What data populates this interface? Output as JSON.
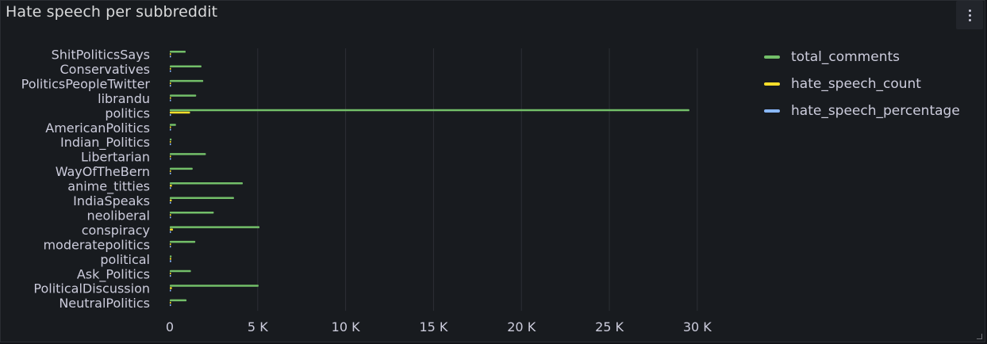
{
  "panel": {
    "title": "Hate speech per subbreddit",
    "menu_icon": "vertical-ellipsis-icon"
  },
  "colors": {
    "total_comments": "#73bf69",
    "hate_speech_count": "#fade2a",
    "hate_speech_percentage": "#8ab8ff",
    "grid": "#2c2f35",
    "text": "#ccccdc"
  },
  "chart_data": {
    "type": "bar",
    "orientation": "horizontal",
    "categories": [
      "ShitPoliticsSays",
      "Conservatives",
      "PoliticsPeopleTwitter",
      "librandu",
      "politics",
      "AmericanPolitics",
      "Indian_Politics",
      "Libertarian",
      "WayOfTheBern",
      "anime_titties",
      "IndiaSpeaks",
      "neoliberal",
      "conspiracy",
      "moderatepolitics",
      "political",
      "Ask_Politics",
      "PoliticalDiscussion",
      "NeutralPolitics"
    ],
    "series": [
      {
        "name": "total_comments",
        "values": [
          900,
          1800,
          1900,
          1500,
          29550,
          350,
          100,
          2050,
          1300,
          4150,
          3650,
          2500,
          5100,
          1450,
          100,
          1200,
          5050,
          950
        ]
      },
      {
        "name": "hate_speech_count",
        "values": [
          30,
          60,
          60,
          70,
          1150,
          15,
          5,
          60,
          50,
          120,
          110,
          70,
          180,
          40,
          80,
          40,
          120,
          30
        ]
      },
      {
        "name": "hate_speech_percentage",
        "values": [
          3.3,
          3.3,
          3.2,
          4.7,
          3.9,
          4.3,
          5.0,
          2.9,
          3.8,
          2.9,
          3.0,
          2.8,
          3.5,
          2.8,
          80.0,
          3.3,
          2.4,
          3.2
        ]
      }
    ],
    "xlim": [
      0,
      31000
    ],
    "xticks": [
      0,
      5000,
      10000,
      15000,
      20000,
      25000,
      30000
    ],
    "xtick_labels": [
      "0",
      "5 K",
      "10 K",
      "15 K",
      "20 K",
      "25 K",
      "30 K"
    ],
    "grid": true,
    "legend_position": "right"
  }
}
